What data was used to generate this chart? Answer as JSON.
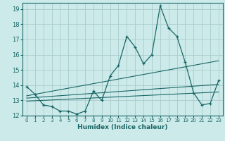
{
  "xlabel": "Humidex (Indice chaleur)",
  "ylabel": "",
  "xlim": [
    -0.5,
    23.5
  ],
  "ylim": [
    12,
    19.4
  ],
  "yticks": [
    12,
    13,
    14,
    15,
    16,
    17,
    18,
    19
  ],
  "xticks": [
    0,
    1,
    2,
    3,
    4,
    5,
    6,
    7,
    8,
    9,
    10,
    11,
    12,
    13,
    14,
    15,
    16,
    17,
    18,
    19,
    20,
    21,
    22,
    23
  ],
  "bg_color": "#cceaea",
  "grid_color": "#aacccc",
  "line_color": "#1a6666",
  "main_line_x": [
    0,
    1,
    2,
    3,
    4,
    5,
    6,
    7,
    8,
    9,
    10,
    11,
    12,
    13,
    14,
    15,
    16,
    17,
    18,
    19,
    20,
    21,
    22,
    23
  ],
  "main_line_y": [
    13.9,
    13.4,
    12.7,
    12.6,
    12.3,
    12.3,
    12.1,
    12.3,
    13.6,
    13.0,
    14.6,
    15.3,
    17.2,
    16.5,
    15.4,
    16.0,
    19.2,
    17.75,
    17.2,
    15.5,
    13.5,
    12.7,
    12.8,
    14.3
  ],
  "line2_x": [
    0,
    23
  ],
  "line2_y": [
    13.3,
    15.6
  ],
  "line3_x": [
    0,
    23
  ],
  "line3_y": [
    13.15,
    14.05
  ],
  "line4_x": [
    0,
    23
  ],
  "line4_y": [
    12.95,
    13.55
  ]
}
